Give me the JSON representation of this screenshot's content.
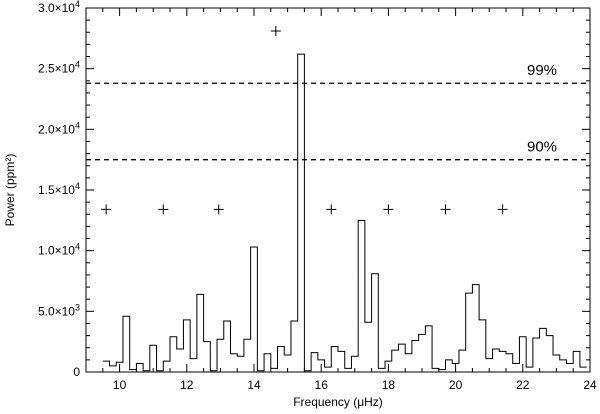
{
  "chart_data": {
    "type": "line",
    "xlabel": "Frequency (μHz)",
    "ylabel": "Power (ppm²)",
    "xlim": [
      9,
      24
    ],
    "ylim": [
      0,
      30000
    ],
    "x_ticks": [
      10,
      12,
      14,
      16,
      18,
      20,
      22,
      24
    ],
    "x_tick_labels": [
      "10",
      "12",
      "14",
      "16",
      "18",
      "20",
      "22",
      "24"
    ],
    "y_ticks": [
      0,
      5000,
      10000,
      15000,
      20000,
      25000,
      30000
    ],
    "y_tick_labels": [
      {
        "mant": "0",
        "exp": ""
      },
      {
        "mant": "5.0×10",
        "exp": "3"
      },
      {
        "mant": "1.0×10",
        "exp": "4"
      },
      {
        "mant": "1.5×10",
        "exp": "4"
      },
      {
        "mant": "2.0×10",
        "exp": "4"
      },
      {
        "mant": "2.5×10",
        "exp": "4"
      },
      {
        "mant": "3.0×10",
        "exp": "4"
      }
    ],
    "series": [
      {
        "style": "step",
        "step_width": 0.2,
        "x": [
          9.6,
          9.8,
          10.0,
          10.2,
          10.4,
          10.6,
          10.8,
          11.0,
          11.2,
          11.4,
          11.6,
          11.8,
          12.0,
          12.2,
          12.4,
          12.6,
          12.8,
          13.0,
          13.2,
          13.4,
          13.6,
          13.8,
          14.0,
          14.2,
          14.4,
          14.6,
          14.8,
          15.0,
          15.2,
          15.4,
          15.6,
          15.8,
          16.0,
          16.2,
          16.4,
          16.6,
          16.8,
          17.0,
          17.2,
          17.4,
          17.6,
          17.8,
          18.0,
          18.2,
          18.4,
          18.6,
          18.8,
          19.0,
          19.2,
          19.4,
          19.6,
          19.8,
          20.0,
          20.2,
          20.4,
          20.6,
          20.8,
          21.0,
          21.2,
          21.4,
          21.6,
          21.8,
          22.0,
          22.2,
          22.4,
          22.6,
          22.8,
          23.0,
          23.2,
          23.4,
          23.6,
          23.8
        ],
        "y": [
          900,
          500,
          800,
          4600,
          200,
          700,
          100,
          2200,
          100,
          900,
          2900,
          1900,
          4300,
          1100,
          6400,
          2500,
          100,
          2700,
          4200,
          1500,
          1300,
          2700,
          10300,
          100,
          1500,
          300,
          2100,
          1400,
          4200,
          26200,
          100,
          1600,
          1000,
          400,
          2100,
          1700,
          300,
          1300,
          12500,
          4100,
          8100,
          300,
          900,
          1800,
          2300,
          1500,
          2600,
          3100,
          3800,
          300,
          200,
          1000,
          700,
          1800,
          6500,
          7200,
          4300,
          1100,
          1900,
          1700,
          1500,
          700,
          2900,
          400,
          2800,
          3600,
          3000,
          1400,
          1000,
          700,
          1700,
          400
        ]
      }
    ],
    "markers": {
      "symbol": "+",
      "x": [
        9.6,
        11.3,
        12.95,
        14.65,
        16.3,
        18.0,
        19.7,
        21.4
      ],
      "y": [
        13400,
        13400,
        13400,
        28100,
        13400,
        13400,
        13400,
        13400
      ]
    },
    "thresholds": [
      {
        "y": 23800,
        "label": "99%"
      },
      {
        "y": 17500,
        "label": "90%"
      }
    ],
    "grid": false,
    "legend": "none"
  }
}
